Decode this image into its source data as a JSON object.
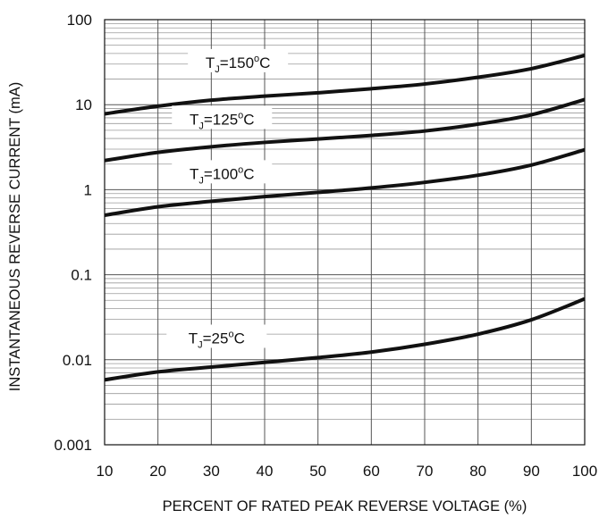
{
  "chart_data": {
    "type": "line",
    "title": "",
    "xlabel": "PERCENT OF RATED PEAK REVERSE VOLTAGE (%)",
    "ylabel": "INSTANTANEOUS REVERSE CURRENT (mA)",
    "x_ticks": [
      "10",
      "20",
      "30",
      "40",
      "50",
      "60",
      "70",
      "80",
      "90",
      "100"
    ],
    "y_ticks": [
      "0.001",
      "0.01",
      "0.1",
      "1",
      "10",
      "100"
    ],
    "xlim": [
      10,
      100
    ],
    "ylim": [
      0.001,
      100
    ],
    "y_scale": "log",
    "grid": true,
    "series": [
      {
        "name": "TJ=150°C",
        "label_parts": {
          "main": "T",
          "sub": "J",
          "eq": "=150",
          "sup": "o",
          "unit": "C"
        },
        "x": [
          10,
          20,
          30,
          40,
          50,
          60,
          70,
          80,
          90,
          100
        ],
        "values": [
          7.8,
          9.6,
          11.3,
          12.6,
          13.8,
          15.4,
          17.5,
          21.0,
          26.5,
          38.0
        ]
      },
      {
        "name": "TJ=125°C",
        "label_parts": {
          "main": "T",
          "sub": "J",
          "eq": "=125",
          "sup": "o",
          "unit": "C"
        },
        "x": [
          10,
          20,
          30,
          40,
          50,
          60,
          70,
          80,
          90,
          100
        ],
        "values": [
          2.2,
          2.75,
          3.2,
          3.6,
          3.95,
          4.35,
          4.9,
          5.9,
          7.6,
          11.5
        ]
      },
      {
        "name": "TJ=100°C",
        "label_parts": {
          "main": "T",
          "sub": "J",
          "eq": "=100",
          "sup": "o",
          "unit": "C"
        },
        "x": [
          10,
          20,
          30,
          40,
          50,
          60,
          70,
          80,
          90,
          100
        ],
        "values": [
          0.5,
          0.63,
          0.73,
          0.83,
          0.93,
          1.05,
          1.22,
          1.48,
          1.95,
          2.95
        ]
      },
      {
        "name": "TJ=25°C",
        "label_parts": {
          "main": "T",
          "sub": "J",
          "eq": "=25",
          "sup": "o",
          "unit": "C"
        },
        "x": [
          10,
          20,
          30,
          40,
          50,
          60,
          70,
          80,
          90,
          100
        ],
        "values": [
          0.0058,
          0.0072,
          0.0082,
          0.0093,
          0.0106,
          0.0123,
          0.0152,
          0.02,
          0.0295,
          0.052
        ]
      }
    ]
  }
}
